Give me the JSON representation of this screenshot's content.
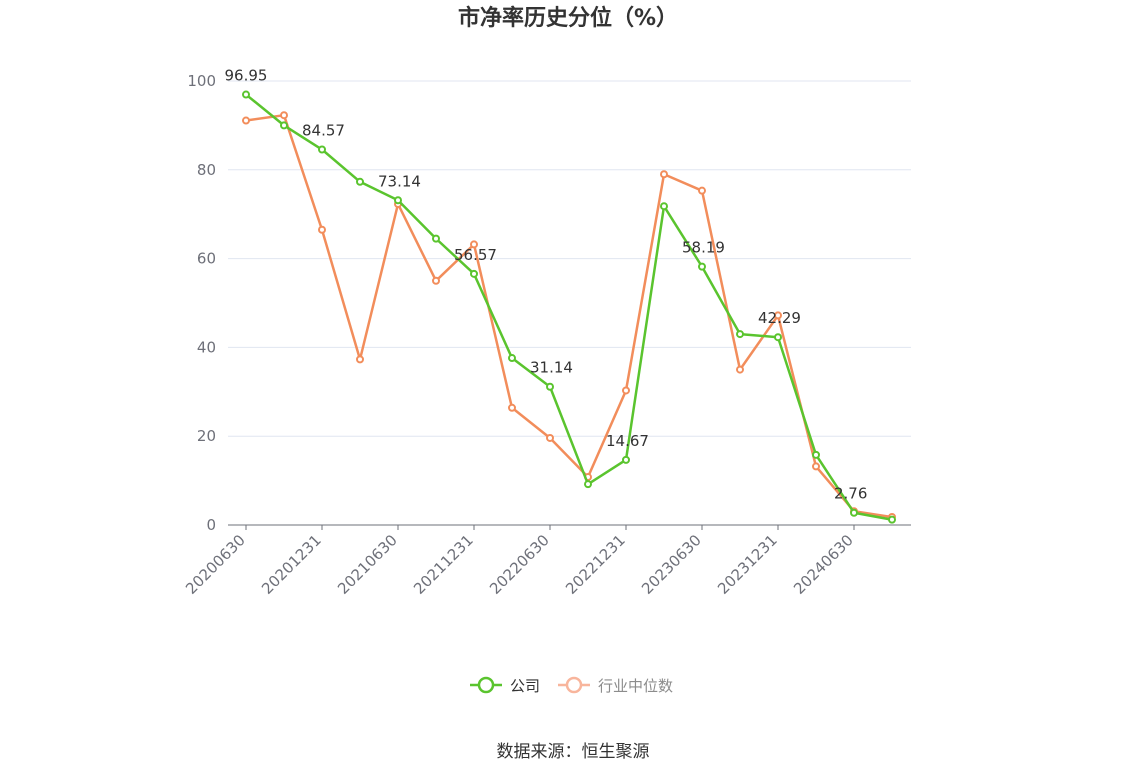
{
  "chart_data": {
    "type": "line",
    "title": "市净率历史分位（%）",
    "x": [
      "20200630",
      "20200930",
      "20201231",
      "20210331",
      "20210630",
      "20210930",
      "20211231",
      "20220331",
      "20220630",
      "20220930",
      "20221231",
      "20230331",
      "20230630",
      "20230930",
      "20231231",
      "20240331",
      "20240630",
      "20240930"
    ],
    "xtick_labels": [
      "20200630",
      "20201231",
      "20210630",
      "20211231",
      "20220630",
      "20221231",
      "20230630",
      "20231231",
      "20240630"
    ],
    "yticks": [
      0,
      20,
      40,
      60,
      80,
      100
    ],
    "ylim": [
      0,
      100
    ],
    "grid": true,
    "legend_position": "bottom-center",
    "series": [
      {
        "name": "公司",
        "color": "#5ac42e",
        "values": [
          96.95,
          90.0,
          84.57,
          77.3,
          73.14,
          64.5,
          56.57,
          37.6,
          31.14,
          9.2,
          14.67,
          71.8,
          58.19,
          43.0,
          42.29,
          15.8,
          2.76,
          1.2
        ],
        "labels": {
          "0": "96.95",
          "2": "84.57",
          "4": "73.14",
          "6": "56.57",
          "8": "31.14",
          "10": "14.67",
          "12": "58.19",
          "14": "42.29",
          "16": "2.76"
        }
      },
      {
        "name": "行业中位数",
        "color": "#f28d5b",
        "values": [
          91.1,
          92.3,
          66.5,
          37.3,
          72.3,
          55.0,
          63.2,
          26.4,
          19.6,
          10.8,
          30.3,
          79.0,
          75.3,
          35.0,
          47.2,
          13.2,
          3.1,
          1.8
        ]
      }
    ],
    "legend": [
      {
        "name": "公司",
        "color": "#5ac42e",
        "text_color": "#333333"
      },
      {
        "name": "行业中位数",
        "color": "#f8b59c",
        "text_color": "#8c8c8c"
      }
    ],
    "source": "数据来源：恒生聚源"
  }
}
